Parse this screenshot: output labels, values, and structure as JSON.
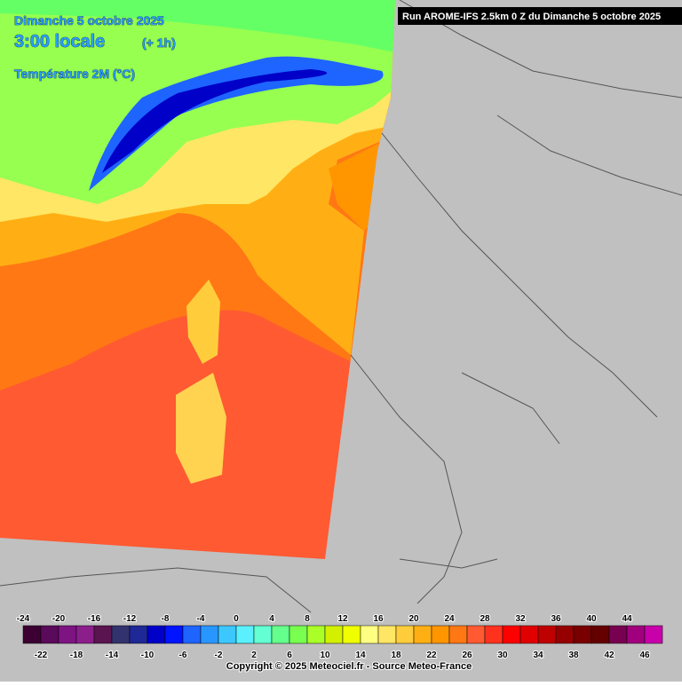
{
  "header": {
    "date": "Dimanche 5 octobre 2025",
    "time": "3:00 locale",
    "offset": "(+ 1h)",
    "field": "Température 2M (°C)",
    "run": "Run AROME-IFS 2.5km 0 Z du Dimanche 5 octobre 2025"
  },
  "legend": {
    "values": [
      -24,
      -22,
      -20,
      -18,
      -16,
      -14,
      -12,
      -10,
      -8,
      -6,
      -4,
      -2,
      0,
      2,
      4,
      6,
      8,
      10,
      12,
      14,
      16,
      18,
      20,
      22,
      24,
      26,
      28,
      30,
      32,
      34,
      36,
      38,
      40,
      42,
      44,
      46
    ],
    "colors": [
      "#3c0032",
      "#5a0a5a",
      "#7d1482",
      "#8c1e8c",
      "#5a1450",
      "#32326e",
      "#1e2896",
      "#0000c8",
      "#0014ff",
      "#1e64ff",
      "#2896ff",
      "#3cc8ff",
      "#5af0ff",
      "#64ffd2",
      "#64ff8c",
      "#78ff50",
      "#aaff28",
      "#d2f000",
      "#f0ff00",
      "#ffff82",
      "#ffe664",
      "#ffcd3c",
      "#ffaf14",
      "#ff9600",
      "#ff7814",
      "#ff5a32",
      "#ff321e",
      "#ff0000",
      "#e10000",
      "#be0000",
      "#960000",
      "#780000",
      "#640000",
      "#780050",
      "#a0007d",
      "#c800aa"
    ]
  },
  "footer": {
    "copyright": "Copyright © 2025 Meteociel.fr - Source Meteo-France"
  }
}
